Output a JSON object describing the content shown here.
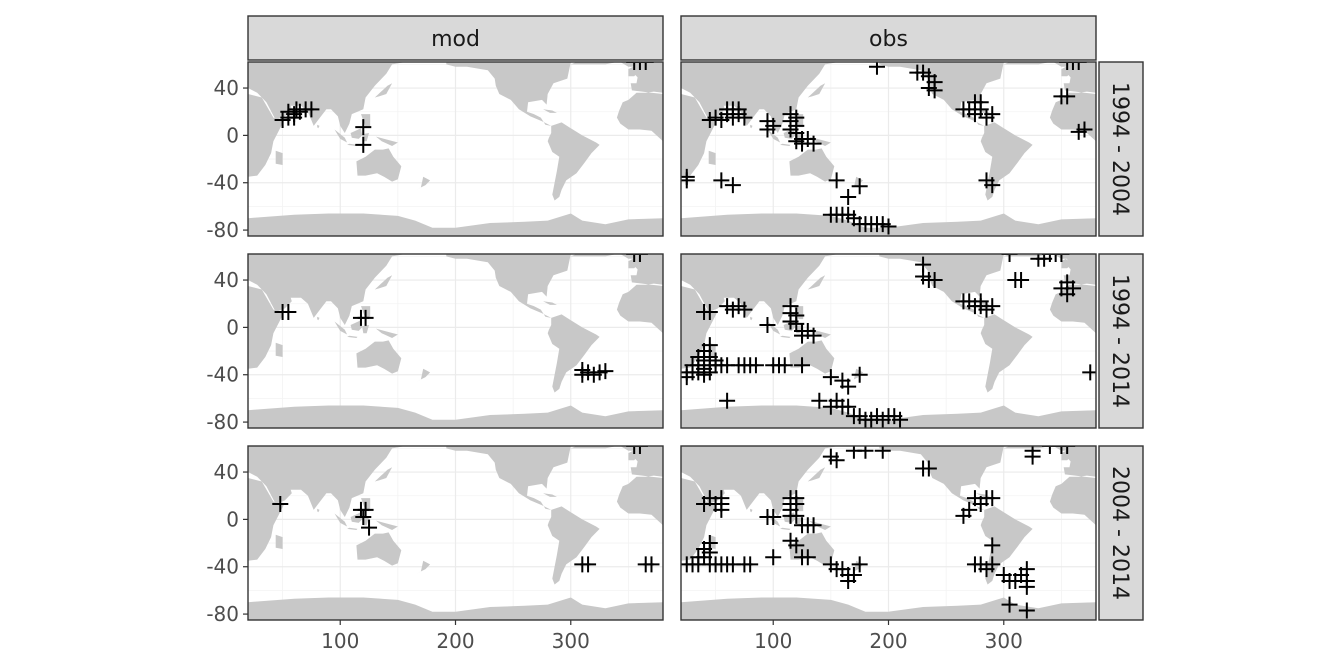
{
  "chart_data": {
    "type": "scatter",
    "facet_cols": [
      "mod",
      "obs"
    ],
    "facet_rows": [
      "1994 - 2004",
      "1994 - 2014",
      "2004 - 2014"
    ],
    "xlim": [
      20,
      380
    ],
    "ylim": [
      -85,
      62
    ],
    "x_ticks": [
      100,
      200,
      300
    ],
    "y_ticks": [
      40,
      0,
      -40,
      -80
    ],
    "grid": true,
    "marker": "plus",
    "land_color": "#c8c8c8",
    "strip_color": "#d9d9d9",
    "panels": [
      {
        "col": "mod",
        "row": "1994 - 2004",
        "points": [
          [
            50,
            13
          ],
          [
            55,
            15
          ],
          [
            60,
            18
          ],
          [
            62,
            22
          ],
          [
            65,
            20
          ],
          [
            70,
            22
          ],
          [
            75,
            22
          ],
          [
            55,
            20
          ],
          [
            60,
            15
          ],
          [
            120,
            7
          ],
          [
            120,
            -8
          ],
          [
            355,
            62
          ],
          [
            360,
            62
          ],
          [
            365,
            62
          ]
        ]
      },
      {
        "col": "mod",
        "row": "1994 - 2014",
        "points": [
          [
            50,
            13
          ],
          [
            55,
            13
          ],
          [
            118,
            8
          ],
          [
            122,
            8
          ],
          [
            310,
            -40
          ],
          [
            315,
            -38
          ],
          [
            320,
            -40
          ],
          [
            325,
            -38
          ],
          [
            330,
            -37
          ],
          [
            310,
            -36
          ],
          [
            355,
            62
          ],
          [
            360,
            62
          ]
        ]
      },
      {
        "col": "mod",
        "row": "2004 - 2014",
        "points": [
          [
            48,
            13
          ],
          [
            118,
            8
          ],
          [
            122,
            8
          ],
          [
            120,
            2
          ],
          [
            125,
            -7
          ],
          [
            310,
            -38
          ],
          [
            315,
            -38
          ],
          [
            365,
            -38
          ],
          [
            370,
            -38
          ],
          [
            355,
            62
          ],
          [
            360,
            62
          ]
        ]
      },
      {
        "col": "obs",
        "row": "1994 - 2004",
        "points": [
          [
            25,
            -35
          ],
          [
            25,
            -38
          ],
          [
            55,
            -38
          ],
          [
            65,
            -42
          ],
          [
            45,
            13
          ],
          [
            50,
            15
          ],
          [
            55,
            13
          ],
          [
            60,
            18
          ],
          [
            65,
            15
          ],
          [
            70,
            18
          ],
          [
            75,
            15
          ],
          [
            60,
            22
          ],
          [
            65,
            22
          ],
          [
            70,
            22
          ],
          [
            95,
            12
          ],
          [
            95,
            5
          ],
          [
            100,
            8
          ],
          [
            115,
            18
          ],
          [
            115,
            12
          ],
          [
            115,
            5
          ],
          [
            120,
            15
          ],
          [
            120,
            8
          ],
          [
            120,
            2
          ],
          [
            125,
            -3
          ],
          [
            125,
            -7
          ],
          [
            130,
            -3
          ],
          [
            135,
            -7
          ],
          [
            120,
            -5
          ],
          [
            155,
            -38
          ],
          [
            165,
            -52
          ],
          [
            175,
            -43
          ],
          [
            150,
            -67
          ],
          [
            155,
            -67
          ],
          [
            160,
            -67
          ],
          [
            165,
            -67
          ],
          [
            170,
            -70
          ],
          [
            175,
            -75
          ],
          [
            180,
            -75
          ],
          [
            185,
            -75
          ],
          [
            190,
            -75
          ],
          [
            195,
            -75
          ],
          [
            200,
            -77
          ],
          [
            190,
            58
          ],
          [
            225,
            53
          ],
          [
            230,
            53
          ],
          [
            235,
            50
          ],
          [
            240,
            45
          ],
          [
            235,
            40
          ],
          [
            240,
            38
          ],
          [
            265,
            22
          ],
          [
            270,
            22
          ],
          [
            275,
            18
          ],
          [
            280,
            22
          ],
          [
            285,
            15
          ],
          [
            290,
            18
          ],
          [
            275,
            28
          ],
          [
            280,
            28
          ],
          [
            285,
            -38
          ],
          [
            290,
            -42
          ],
          [
            355,
            62
          ],
          [
            360,
            62
          ],
          [
            365,
            62
          ],
          [
            350,
            33
          ],
          [
            355,
            33
          ],
          [
            365,
            3
          ],
          [
            370,
            5
          ]
        ]
      },
      {
        "col": "obs",
        "row": "1994 - 2014",
        "points": [
          [
            25,
            -38
          ],
          [
            25,
            -42
          ],
          [
            30,
            -32
          ],
          [
            30,
            -38
          ],
          [
            35,
            -25
          ],
          [
            35,
            -32
          ],
          [
            35,
            -38
          ],
          [
            40,
            -20
          ],
          [
            40,
            -28
          ],
          [
            40,
            -35
          ],
          [
            40,
            -40
          ],
          [
            45,
            -15
          ],
          [
            45,
            -25
          ],
          [
            45,
            -32
          ],
          [
            45,
            -38
          ],
          [
            50,
            -28
          ],
          [
            50,
            -32
          ],
          [
            55,
            -32
          ],
          [
            60,
            -32
          ],
          [
            70,
            -32
          ],
          [
            75,
            -32
          ],
          [
            80,
            -32
          ],
          [
            85,
            -32
          ],
          [
            100,
            -32
          ],
          [
            105,
            -32
          ],
          [
            110,
            -32
          ],
          [
            125,
            -32
          ],
          [
            40,
            13
          ],
          [
            45,
            13
          ],
          [
            60,
            18
          ],
          [
            65,
            15
          ],
          [
            70,
            18
          ],
          [
            75,
            15
          ],
          [
            95,
            2
          ],
          [
            115,
            18
          ],
          [
            115,
            12
          ],
          [
            115,
            5
          ],
          [
            120,
            10
          ],
          [
            120,
            3
          ],
          [
            125,
            -3
          ],
          [
            125,
            -7
          ],
          [
            130,
            -3
          ],
          [
            135,
            -7
          ],
          [
            60,
            -62
          ],
          [
            150,
            -42
          ],
          [
            160,
            -45
          ],
          [
            165,
            -50
          ],
          [
            175,
            -40
          ],
          [
            140,
            -62
          ],
          [
            150,
            -67
          ],
          [
            155,
            -62
          ],
          [
            160,
            -67
          ],
          [
            165,
            -67
          ],
          [
            170,
            -75
          ],
          [
            175,
            -75
          ],
          [
            180,
            -78
          ],
          [
            185,
            -78
          ],
          [
            190,
            -75
          ],
          [
            195,
            -78
          ],
          [
            200,
            -75
          ],
          [
            205,
            -75
          ],
          [
            210,
            -78
          ],
          [
            230,
            53
          ],
          [
            230,
            43
          ],
          [
            235,
            40
          ],
          [
            240,
            40
          ],
          [
            265,
            22
          ],
          [
            270,
            22
          ],
          [
            275,
            18
          ],
          [
            280,
            18
          ],
          [
            285,
            15
          ],
          [
            290,
            18
          ],
          [
            280,
            22
          ],
          [
            310,
            40
          ],
          [
            315,
            40
          ],
          [
            305,
            62
          ],
          [
            330,
            58
          ],
          [
            335,
            58
          ],
          [
            340,
            62
          ],
          [
            345,
            62
          ],
          [
            350,
            62
          ],
          [
            350,
            33
          ],
          [
            355,
            38
          ],
          [
            360,
            33
          ],
          [
            355,
            28
          ],
          [
            375,
            -38
          ]
        ]
      },
      {
        "col": "obs",
        "row": "2004 - 2014",
        "points": [
          [
            25,
            -38
          ],
          [
            30,
            -38
          ],
          [
            35,
            -32
          ],
          [
            35,
            -38
          ],
          [
            40,
            -25
          ],
          [
            40,
            -32
          ],
          [
            45,
            -20
          ],
          [
            45,
            -28
          ],
          [
            45,
            -38
          ],
          [
            50,
            -38
          ],
          [
            55,
            -38
          ],
          [
            60,
            -38
          ],
          [
            65,
            -38
          ],
          [
            75,
            -38
          ],
          [
            80,
            -38
          ],
          [
            40,
            13
          ],
          [
            45,
            18
          ],
          [
            50,
            13
          ],
          [
            55,
            18
          ],
          [
            55,
            13
          ],
          [
            55,
            8
          ],
          [
            95,
            2
          ],
          [
            100,
            2
          ],
          [
            100,
            -32
          ],
          [
            115,
            18
          ],
          [
            115,
            13
          ],
          [
            115,
            8
          ],
          [
            115,
            3
          ],
          [
            120,
            18
          ],
          [
            120,
            13
          ],
          [
            120,
            3
          ],
          [
            125,
            -5
          ],
          [
            130,
            -5
          ],
          [
            135,
            -5
          ],
          [
            115,
            -18
          ],
          [
            120,
            -22
          ],
          [
            125,
            -32
          ],
          [
            130,
            -32
          ],
          [
            150,
            -38
          ],
          [
            155,
            -42
          ],
          [
            160,
            -42
          ],
          [
            165,
            -47
          ],
          [
            170,
            -47
          ],
          [
            175,
            -38
          ],
          [
            165,
            -52
          ],
          [
            150,
            53
          ],
          [
            155,
            50
          ],
          [
            170,
            58
          ],
          [
            180,
            58
          ],
          [
            195,
            58
          ],
          [
            230,
            43
          ],
          [
            235,
            43
          ],
          [
            265,
            3
          ],
          [
            270,
            8
          ],
          [
            275,
            18
          ],
          [
            280,
            13
          ],
          [
            285,
            18
          ],
          [
            290,
            18
          ],
          [
            275,
            -38
          ],
          [
            280,
            -38
          ],
          [
            285,
            -42
          ],
          [
            290,
            -38
          ],
          [
            290,
            -22
          ],
          [
            300,
            -47
          ],
          [
            305,
            -52
          ],
          [
            310,
            -52
          ],
          [
            315,
            -47
          ],
          [
            320,
            -42
          ],
          [
            320,
            -52
          ],
          [
            320,
            -57
          ],
          [
            305,
            -72
          ],
          [
            320,
            -77
          ],
          [
            325,
            58
          ],
          [
            325,
            53
          ],
          [
            340,
            62
          ],
          [
            350,
            62
          ],
          [
            355,
            62
          ]
        ]
      }
    ]
  }
}
